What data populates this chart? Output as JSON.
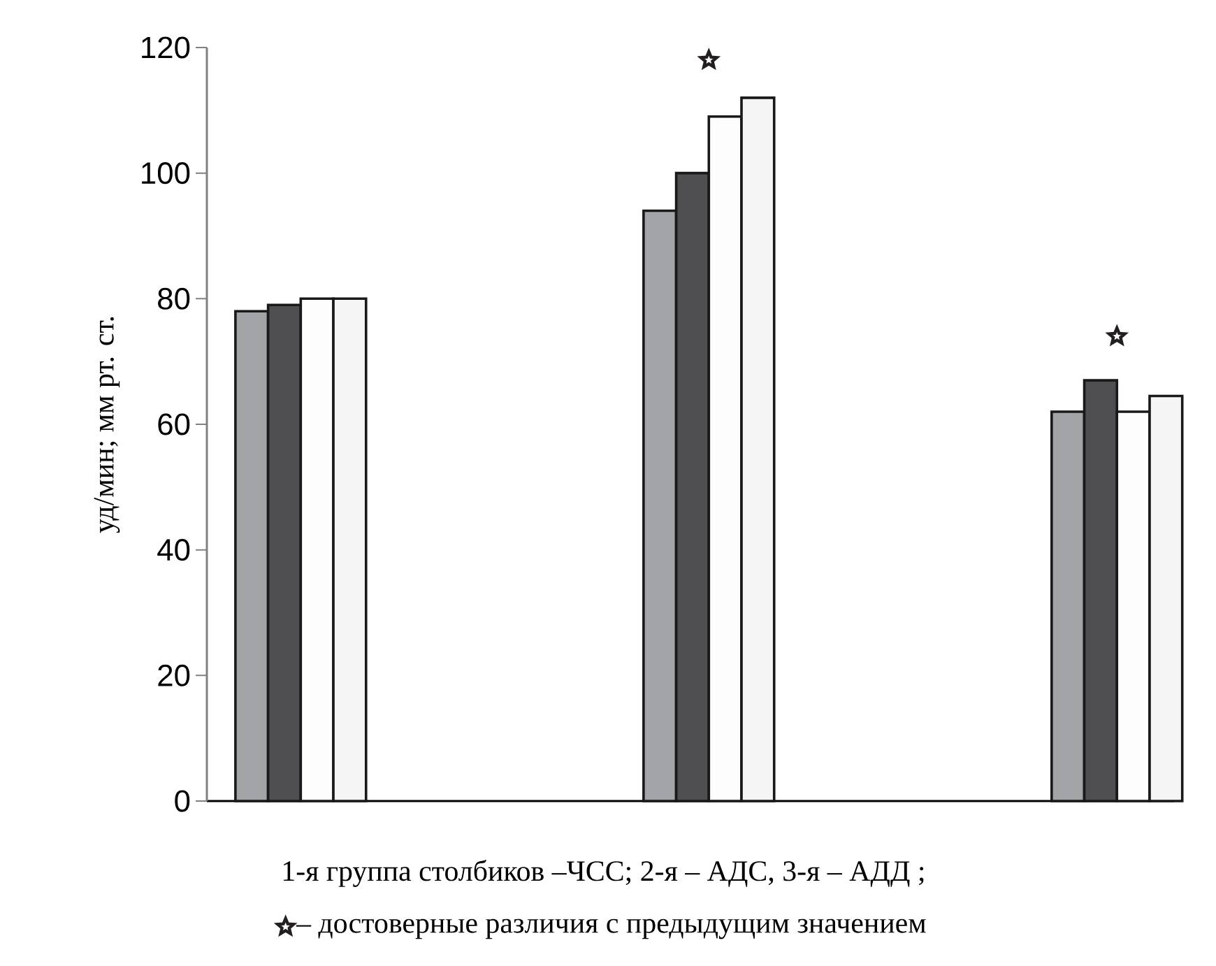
{
  "chart_data": {
    "type": "bar",
    "ylabel": "уд/мин; мм рт. ст.",
    "categories": [
      null,
      null,
      null
    ],
    "series": [
      {
        "color": "#a3a4a8",
        "values": [
          78,
          94,
          62
        ]
      },
      {
        "color": "#4f4f51",
        "values": [
          79,
          100,
          67
        ]
      },
      {
        "color": "#fdfdfd",
        "values": [
          80,
          109,
          62
        ]
      },
      {
        "color": "#f5f5f5",
        "values": [
          80,
          112,
          64.5
        ]
      },
      {
        "type": "scatter",
        "marker": "star",
        "color": "#231f20",
        "name": "– достоверные различия с предыдущим значением",
        "values": [
          null,
          118,
          74
        ]
      }
    ],
    "ylim": [
      0,
      120
    ],
    "yticks": [
      0,
      20,
      40,
      60,
      80,
      100,
      120
    ],
    "annotations": [
      "1-я группа столбиков –ЧСС; 2-я – АДС, 3-я – АДД ;"
    ],
    "legend": "bottom",
    "grid": false
  }
}
